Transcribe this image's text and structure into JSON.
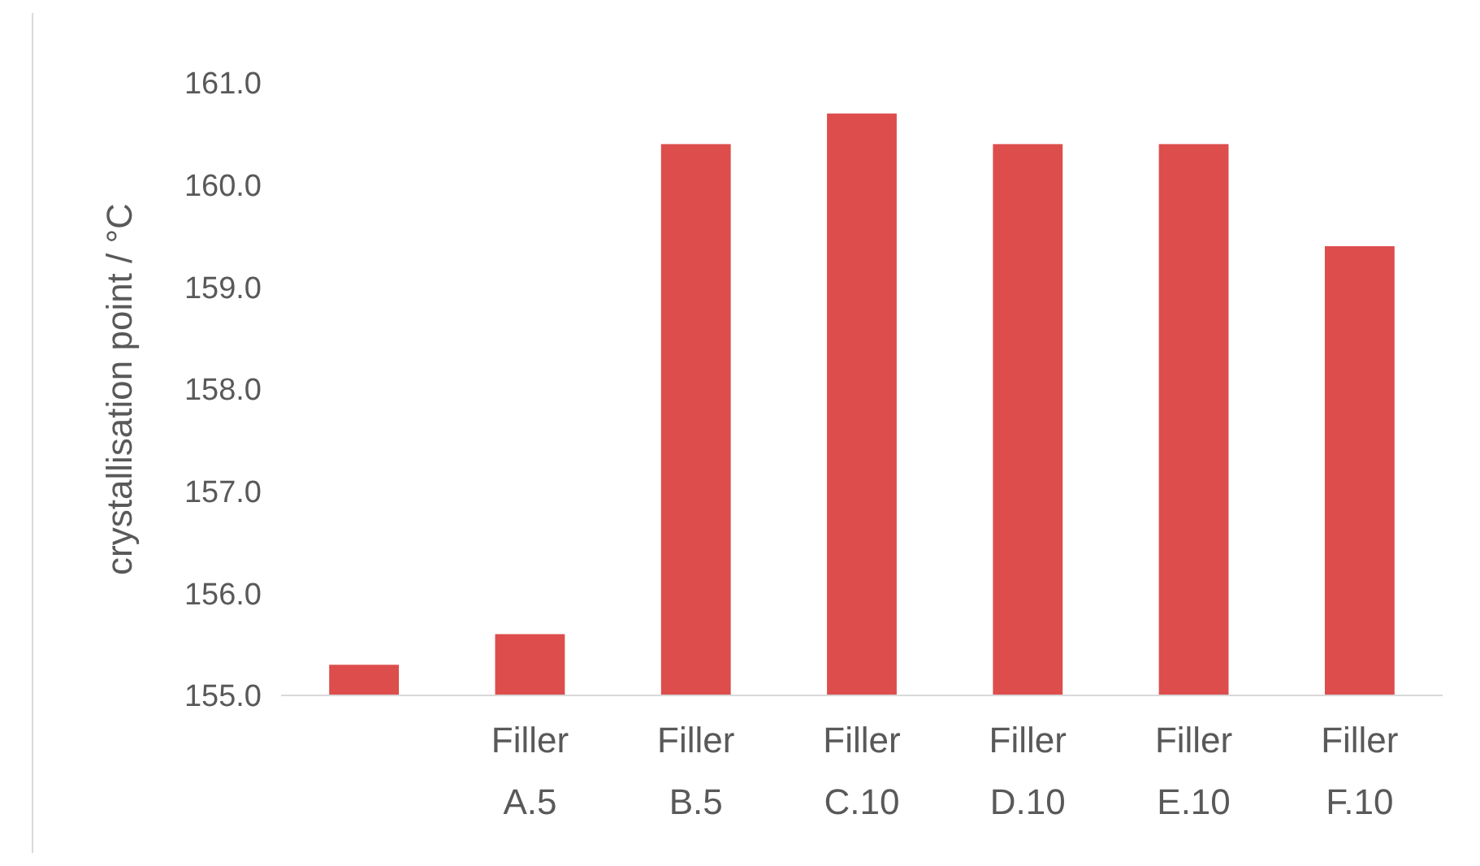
{
  "chart_data": {
    "type": "bar",
    "ylabel": "crystallisation point / °C",
    "categories": [
      null,
      "Filler A.5",
      "Filler B.5",
      "Filler C.10",
      "Filler D.10",
      "Filler E.10",
      "Filler F.10"
    ],
    "values": [
      155.3,
      155.6,
      160.4,
      160.7,
      160.4,
      160.4,
      159.4
    ],
    "color": "#dd4d4b",
    "ylim": [
      155,
      161
    ],
    "yticks": [
      {
        "value": 155,
        "label": "155.0"
      },
      {
        "value": 156,
        "label": "156.0"
      },
      {
        "value": 157,
        "label": "157.0"
      },
      {
        "value": 158,
        "label": "158.0"
      },
      {
        "value": 159,
        "label": "159.0"
      },
      {
        "value": 160,
        "label": "160.0"
      },
      {
        "value": 161,
        "label": "161.0"
      }
    ],
    "grid": false
  }
}
